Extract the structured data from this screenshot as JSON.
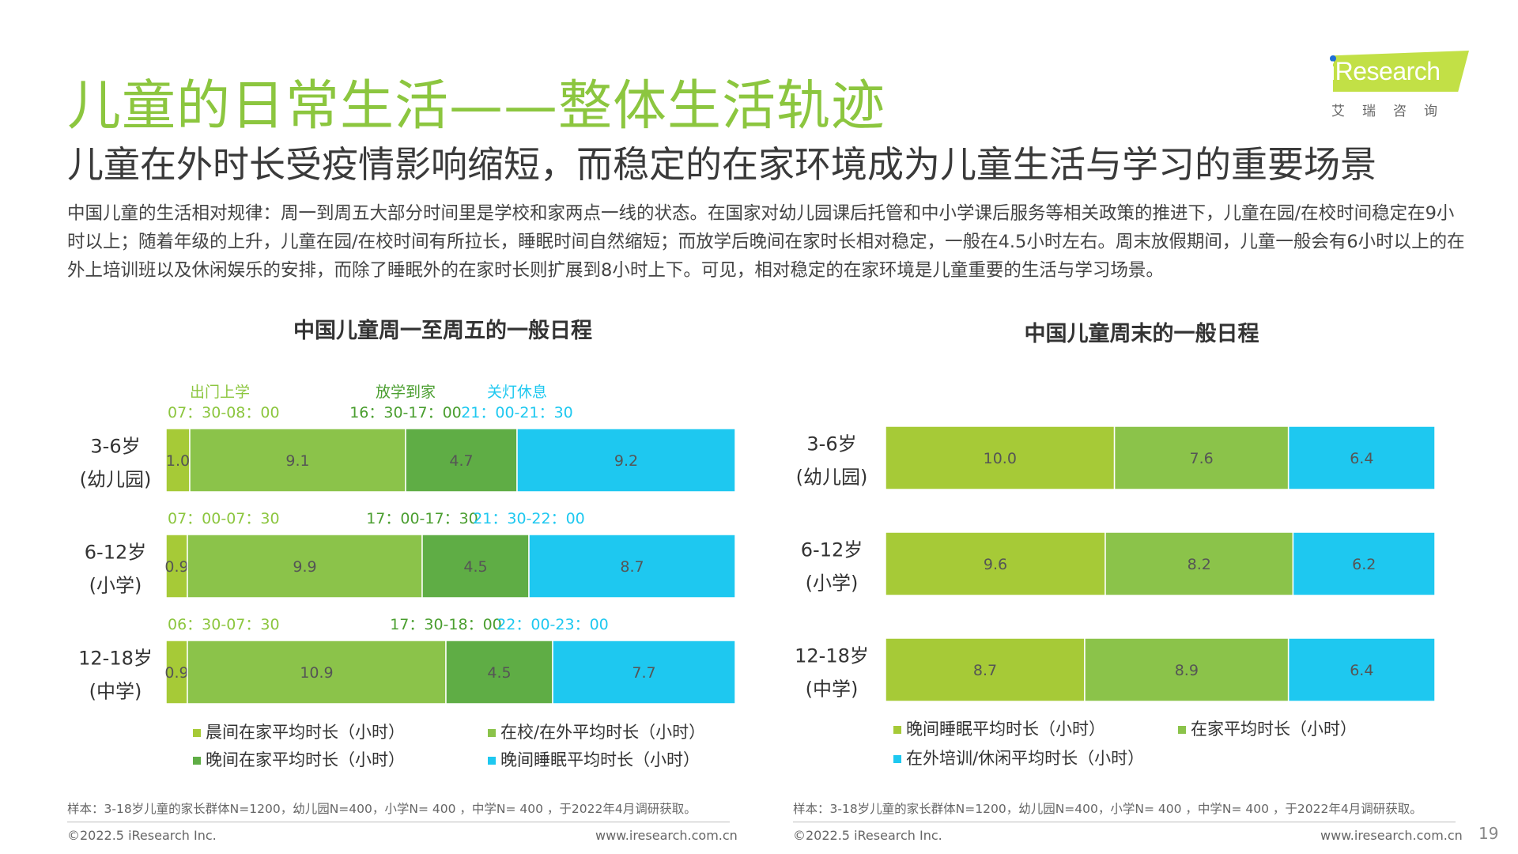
{
  "header": {
    "title": "儿童的日常生活——整体生活轨迹",
    "subtitle": "儿童在外时长受疫情影响缩短，而稳定的在家环境成为儿童生活与学习的重要场景",
    "body": "中国儿童的生活相对规律：周一到周五大部分时间里是学校和家两点一线的状态。在国家对幼儿园课后托管和中小学课后服务等相关政策的推进下，儿童在园/在校时间稳定在9小时以上；随着年级的上升，儿童在园/在校时间有所拉长，睡眠时间自然缩短；而放学后晚间在家时长相对稳定，一般在4.5小时左右。周末放假期间，儿童一般会有6小时以上的在外上培训班以及休闲娱乐的安排，而除了睡眠外的在家时长则扩展到8小时上下。可见，相对稳定的在家环境是儿童重要的生活与学习场景。"
  },
  "logo": {
    "text": "iResearch",
    "subtitle": "艾瑞咨询"
  },
  "colors": {
    "accent": "#8cc63f",
    "light_green": "#a6ca37",
    "mid_green": "#8bc34a",
    "dark_green": "#5fad45",
    "cyan": "#1ec8f0"
  },
  "chart_data": [
    {
      "type": "bar",
      "orientation": "horizontal-stacked",
      "title": "中国儿童周一至周五的一般日程",
      "categories": [
        "3-6岁",
        "6-12岁",
        "12-18岁"
      ],
      "category_sublabels": [
        "(幼儿园)",
        "(小学)",
        "(中学)"
      ],
      "series": [
        {
          "name": "晨间在家平均时长（小时）",
          "color": "#a6ca37",
          "values": [
            1.0,
            0.9,
            0.9
          ]
        },
        {
          "name": "在校/在外平均时长（小时）",
          "color": "#8bc34a",
          "values": [
            9.1,
            9.9,
            10.9
          ]
        },
        {
          "name": "晚间在家平均时长（小时）",
          "color": "#5fad45",
          "values": [
            4.7,
            4.5,
            4.5
          ]
        },
        {
          "name": "晚间睡眠平均时长（小时）",
          "color": "#1ec8f0",
          "values": [
            9.2,
            8.7,
            7.7
          ]
        }
      ],
      "event_labels": [
        "出门上学",
        "放学到家",
        "关灯休息"
      ],
      "time_labels": [
        [
          "07：30-08：00",
          "16：30-17：00",
          "21：00-21：30"
        ],
        [
          "07：00-07：30",
          "17：00-17：30",
          "21：30-22：00"
        ],
        [
          "06：30-07：30",
          "17：30-18：00",
          "22：00-23：00"
        ]
      ],
      "note": "样本：3-18岁儿童的家长群体N=1200，幼儿园N=400，小学N= 400 ，中学N= 400 ，于2022年4月调研获取。"
    },
    {
      "type": "bar",
      "orientation": "horizontal-stacked",
      "title": "中国儿童周末的一般日程",
      "categories": [
        "3-6岁",
        "6-12岁",
        "12-18岁"
      ],
      "category_sublabels": [
        "(幼儿园)",
        "(小学)",
        "(中学)"
      ],
      "series": [
        {
          "name": "晚间睡眠平均时长（小时）",
          "color": "#a6ca37",
          "values": [
            10.0,
            9.6,
            8.7
          ]
        },
        {
          "name": "在家平均时长（小时）",
          "color": "#8bc34a",
          "values": [
            7.6,
            8.2,
            8.9
          ]
        },
        {
          "name": "在外培训/休闲平均时长（小时）",
          "color": "#1ec8f0",
          "values": [
            6.4,
            6.2,
            6.4
          ]
        }
      ],
      "note": "样本：3-18岁儿童的家长群体N=1200，幼儿园N=400，小学N= 400 ，中学N= 400 ，于2022年4月调研获取。"
    }
  ],
  "footer": {
    "copyright": "©2022.5 iResearch Inc.",
    "website": "www.iresearch.com.cn",
    "page_number": "19"
  }
}
